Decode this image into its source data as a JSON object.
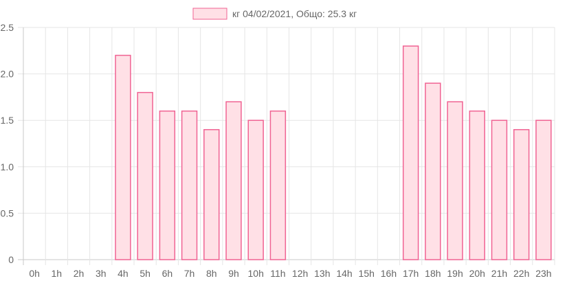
{
  "chart_data": {
    "type": "bar",
    "title": "",
    "xlabel": "",
    "ylabel": "",
    "legend": {
      "label": "кг 04/02/2021, Общо: 25.3 кг",
      "position": "top"
    },
    "categories": [
      "0h",
      "1h",
      "2h",
      "3h",
      "4h",
      "5h",
      "6h",
      "7h",
      "8h",
      "9h",
      "10h",
      "11h",
      "12h",
      "13h",
      "14h",
      "15h",
      "16h",
      "17h",
      "18h",
      "19h",
      "20h",
      "21h",
      "22h",
      "23h"
    ],
    "values": [
      0,
      0,
      0,
      0,
      2.2,
      1.8,
      1.6,
      1.6,
      1.4,
      1.7,
      1.5,
      1.6,
      0,
      0,
      0,
      0,
      0,
      2.3,
      1.9,
      1.7,
      1.6,
      1.5,
      1.4,
      1.5
    ],
    "ylim": [
      0,
      2.5
    ],
    "yticks": [
      "0",
      "0.5",
      "1.0",
      "1.5",
      "2.0",
      "2.5"
    ],
    "grid": true,
    "colors": {
      "bar_fill": "#ffe0e6",
      "bar_stroke": "#f06292",
      "grid": "#e5e5e5",
      "axis": "#c8c8c8",
      "text": "#666666"
    }
  }
}
